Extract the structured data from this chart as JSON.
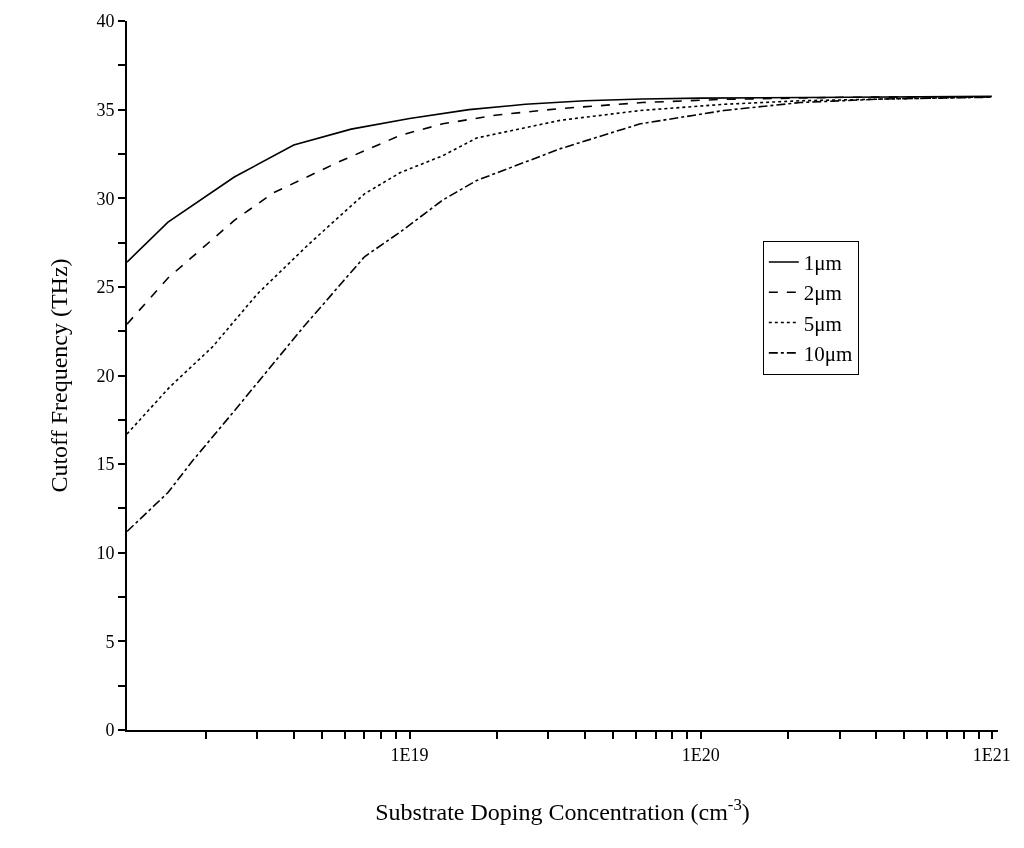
{
  "chart_data": {
    "type": "line",
    "xlabel": "Substrate Doping Concentration (cm$^{-3}$)",
    "ylabel": "Cutoff Frequency (THz)",
    "log": "x",
    "grid": false,
    "legend": "right",
    "marker": "none",
    "xlim": [
      1.07e+18,
      1.05e+21
    ],
    "xticks": [
      {
        "value": 2e+18,
        "label": null
      },
      {
        "value": 3e+18,
        "label": null
      },
      {
        "value": 4e+18,
        "label": null
      },
      {
        "value": 5e+18,
        "label": null
      },
      {
        "value": 6e+18,
        "label": null
      },
      {
        "value": 7e+18,
        "label": null
      },
      {
        "value": 8e+18,
        "label": null
      },
      {
        "value": 9e+18,
        "label": null
      },
      {
        "value": 1e+19,
        "label": "1E19"
      },
      {
        "value": 2e+19,
        "label": null
      },
      {
        "value": 3e+19,
        "label": null
      },
      {
        "value": 4e+19,
        "label": null
      },
      {
        "value": 5e+19,
        "label": null
      },
      {
        "value": 6e+19,
        "label": null
      },
      {
        "value": 7e+19,
        "label": null
      },
      {
        "value": 8e+19,
        "label": null
      },
      {
        "value": 9e+19,
        "label": null
      },
      {
        "value": 1e+20,
        "label": "1E20"
      },
      {
        "value": 2e+20,
        "label": null
      },
      {
        "value": 3e+20,
        "label": null
      },
      {
        "value": 4e+20,
        "label": null
      },
      {
        "value": 5e+20,
        "label": null
      },
      {
        "value": 6e+20,
        "label": null
      },
      {
        "value": 7e+20,
        "label": null
      },
      {
        "value": 8e+20,
        "label": null
      },
      {
        "value": 9e+20,
        "label": null
      },
      {
        "value": 1e+21,
        "label": "1E21"
      }
    ],
    "ylim": [
      0,
      40
    ],
    "yticks": [
      0,
      {
        "value": 2.5,
        "label": null
      },
      5,
      {
        "value": 7.5,
        "label": null
      },
      10,
      {
        "value": 12.5,
        "label": null
      },
      15,
      {
        "value": 17.5,
        "label": null
      },
      20,
      {
        "value": 22.5,
        "label": null
      },
      25,
      {
        "value": 27.5,
        "label": null
      },
      30,
      {
        "value": 32.5,
        "label": null
      },
      35,
      {
        "value": 37.5,
        "label": null
      },
      40
    ],
    "series": [
      {
        "name": "1μm",
        "color": "#000000",
        "line_style": "solid",
        "x": [
          1.07e+18,
          1.48e+18,
          2.5e+18,
          4e+18,
          6.3e+18,
          1e+19,
          1.6e+19,
          2.5e+19,
          4e+19,
          6.3e+19,
          1e+20,
          3.2e+20,
          1e+21
        ],
        "values": [
          26.4,
          28.65,
          31.2,
          33.0,
          33.9,
          34.5,
          35.0,
          35.3,
          35.5,
          35.6,
          35.65,
          35.7,
          35.75
        ]
      },
      {
        "name": "2μm",
        "color": "#000000",
        "line_style": "dashed",
        "x": [
          1.07e+18,
          1.48e+18,
          2.5e+18,
          3.4e+18,
          5.8e+18,
          9.3e+18,
          1.3e+19,
          2e+19,
          3.3e+19,
          6.3e+19,
          1.2e+20,
          3.2e+20,
          1e+21
        ],
        "values": [
          22.9,
          25.5,
          28.75,
          30.3,
          32.1,
          33.55,
          34.2,
          34.7,
          35.06,
          35.4,
          35.58,
          35.7,
          35.72
        ]
      },
      {
        "name": "5μm",
        "color": "#000000",
        "line_style": "dotted",
        "x": [
          1.07e+18,
          1.5e+18,
          2.1e+18,
          3e+18,
          4.5e+18,
          7e+18,
          9.3e+18,
          1.3e+19,
          1.7e+19,
          3.3e+19,
          6.2e+19,
          1.2e+20,
          2.2e+20,
          1e+21
        ],
        "values": [
          16.7,
          19.35,
          21.6,
          24.6,
          27.4,
          30.25,
          31.45,
          32.4,
          33.4,
          34.4,
          34.95,
          35.3,
          35.5,
          35.72
        ]
      },
      {
        "name": "10μm",
        "color": "#000000",
        "line_style": "dashdot",
        "x": [
          1.07e+18,
          1.48e+18,
          1.8e+18,
          2.5e+18,
          4.3e+18,
          7e+18,
          9.3e+18,
          1.3e+19,
          1.7e+19,
          3.3e+19,
          6.2e+19,
          1.2e+20,
          2.2e+20,
          4.2e+20,
          1e+21
        ],
        "values": [
          11.2,
          13.4,
          15.2,
          18.0,
          22.7,
          26.7,
          28.1,
          29.9,
          31.0,
          32.8,
          34.2,
          34.95,
          35.4,
          35.6,
          35.7
        ]
      }
    ]
  }
}
